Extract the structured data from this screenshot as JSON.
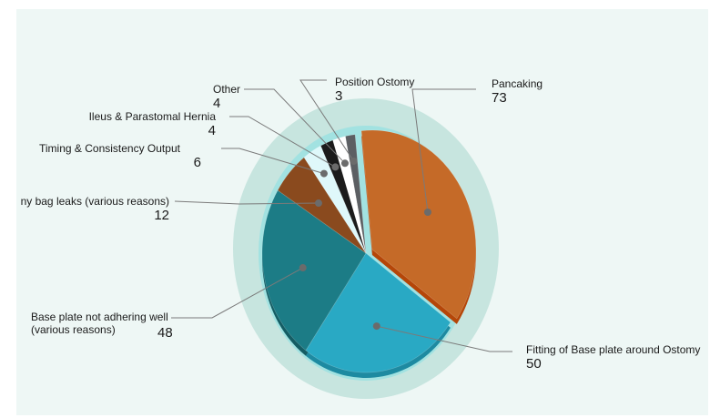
{
  "chart_data": {
    "type": "pie",
    "slices": [
      {
        "label": "Pancaking",
        "value": 73,
        "color": "#c56a28",
        "side": "#b54608"
      },
      {
        "label": "Fitting of Base plate around Ostomy",
        "value": 50,
        "color": "#29a9c4",
        "side": "#1d8aa1"
      },
      {
        "label": "Base plate not adhering well (various reasons)",
        "value": 48,
        "color": "#1c7c86",
        "side": "#145d64"
      },
      {
        "label": "Ostomy bag leaks (various reasons)",
        "value": 12,
        "color": "#8a4a1e",
        "side": "#6b3714"
      },
      {
        "label": "Timing & Consistency Output",
        "value": 6,
        "color": "#dff8fa",
        "side": "#bfe6ea"
      },
      {
        "label": "Ileus & Parastomal Hernia",
        "value": 4,
        "color": "#1b1b1b",
        "side": "#000000"
      },
      {
        "label": "Other",
        "value": 4,
        "color": "#ffffff",
        "side": "#dddddd"
      },
      {
        "label": "Position Ostomy",
        "value": 3,
        "color": "#5c5f63",
        "side": "#3f4245"
      }
    ]
  },
  "labels": {
    "pancaking": {
      "name": "Pancaking",
      "value": "73"
    },
    "fitting": {
      "name": "Fitting of Base plate around Ostomy",
      "value": "50"
    },
    "baseplate": {
      "name_line1": "Base plate not adhering well",
      "name_line2": "(various reasons)",
      "value": "48"
    },
    "bagleaks": {
      "name": "ny bag leaks (various reasons)",
      "value": "12"
    },
    "timing": {
      "name": "Timing & Consistency Output",
      "value": "6"
    },
    "ileus": {
      "name": "Ileus & Parastomal Hernia",
      "value": "4"
    },
    "other": {
      "name": "Other",
      "value": "4"
    },
    "position": {
      "name": "Position Ostomy",
      "value": "3"
    }
  }
}
